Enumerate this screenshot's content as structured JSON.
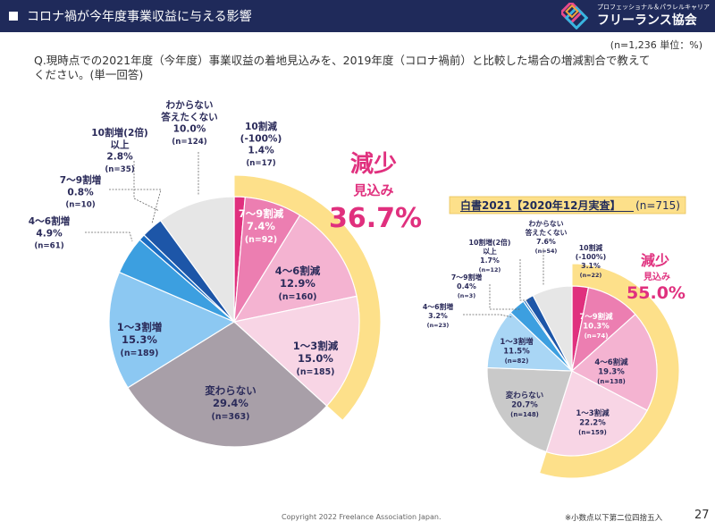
{
  "header": {
    "title": "コロナ禍が今年度事業収益に与える影響",
    "logo_sub": "プロフェッショナル＆パラレルキャリア",
    "logo_main": "フリーランス協会",
    "colors": {
      "bar": "#1f2a5a",
      "logo": [
        "#e94b8a",
        "#f2a33a",
        "#39b5e0",
        "#7b5fc7"
      ]
    }
  },
  "unit_note": "(n=1,236 単位：%)",
  "question": "Q.現時点での2021年度（今年度）事業収益の着地見込みを、2019年度（コロナ禍前）と比較した場合の増減割合で教えてください。(単一回答)",
  "footer": {
    "copyright": "Copyright 2022 Freelance Association Japan.",
    "note": "※小数点以下第二位四捨五入",
    "page": "27"
  },
  "chart_data": [
    {
      "type": "pie",
      "title": "",
      "categories": [
        "10割減(-100%)",
        "7〜9割減",
        "4〜6割減",
        "1〜3割減",
        "変わらない",
        "1〜3割増",
        "4〜6割増",
        "7〜9割増",
        "10割増(2倍)以上",
        "わからない答えたくない"
      ],
      "values": [
        1.4,
        7.4,
        12.9,
        15.0,
        29.4,
        15.3,
        4.9,
        0.8,
        2.8,
        10.0
      ],
      "counts": [
        "(n=17)",
        "(n=92)",
        "(n=160)",
        "(n=185)",
        "(n=363)",
        "(n=189)",
        "(n=61)",
        "(n=10)",
        "(n=35)",
        "(n=124)"
      ],
      "label_lines": [
        [
          "10割減",
          "(-100%)",
          "1.4%",
          "(n=17)"
        ],
        [
          "7〜9割減",
          "7.4%",
          "(n=92)"
        ],
        [
          "4〜6割減",
          "12.9%",
          "(n=160)"
        ],
        [
          "1〜3割減",
          "15.0%",
          "(n=185)"
        ],
        [
          "変わらない",
          "29.4%",
          "(n=363)"
        ],
        [
          "1〜3割増",
          "15.3%",
          "(n=189)"
        ],
        [
          "4〜6割増",
          "4.9%",
          "(n=61)"
        ],
        [
          "7〜9割増",
          "0.8%",
          "(n=10)"
        ],
        [
          "10割増(2倍)",
          "以上",
          "2.8%",
          "(n=35)"
        ],
        [
          "わからない",
          "答えたくない",
          "10.0%",
          "(n=124)"
        ]
      ],
      "colors": [
        "#e0307e",
        "#ec7eb1",
        "#f4b3d1",
        "#f8d5e5",
        "#a89fa8",
        "#8cc8f2",
        "#3c9fe0",
        "#1a6cc2",
        "#1d56a8",
        "#e6e6e6"
      ],
      "decrease_summary": {
        "label1": "減少",
        "label2": "見込み",
        "value": "36.7%"
      },
      "decrease_ring_color": "#fde08a"
    },
    {
      "type": "pie",
      "title": "白書2021【2020年12月実査】",
      "title_n": "(n=715)",
      "categories": [
        "10割減(-100%)",
        "7〜9割減",
        "4〜6割減",
        "1〜3割減",
        "変わらない",
        "1〜3割増",
        "4〜6割増",
        "7〜9割増",
        "10割増(2倍)以上",
        "わからない答えたくない"
      ],
      "values": [
        3.1,
        10.3,
        19.3,
        22.2,
        20.7,
        11.5,
        3.2,
        0.4,
        1.7,
        7.6
      ],
      "counts": [
        "(n=22)",
        "(n=74)",
        "(n=138)",
        "(n=159)",
        "(n=148)",
        "(n=82)",
        "(n=23)",
        "(n=3)",
        "(n=12)",
        "(n=54)"
      ],
      "label_lines": [
        [
          "10割減",
          "(-100%)",
          "3.1%",
          "(n=22)"
        ],
        [
          "7〜9割減",
          "10.3%",
          "(n=74)"
        ],
        [
          "4〜6割減",
          "19.3%",
          "(n=138)"
        ],
        [
          "1〜3割減",
          "22.2%",
          "(n=159)"
        ],
        [
          "変わらない",
          "20.7%",
          "(n=148)"
        ],
        [
          "1〜3割増",
          "11.5%",
          "(n=82)"
        ],
        [
          "4〜6割増",
          "3.2%",
          "(n=23)"
        ],
        [
          "7〜9割増",
          "0.4%",
          "(n=3)"
        ],
        [
          "10割増(2倍)",
          "以上",
          "1.7%",
          "(n=12)"
        ],
        [
          "わからない",
          "答えたくない",
          "7.6%",
          "(n=54)"
        ]
      ],
      "colors": [
        "#e0307e",
        "#ec7eb1",
        "#f4b3d1",
        "#f8d5e5",
        "#c9c9c9",
        "#a9d6f5",
        "#3c9fe0",
        "#1a6cc2",
        "#1d56a8",
        "#e6e6e6"
      ],
      "decrease_summary": {
        "label1": "減少",
        "label2": "見込み",
        "value": "55.0%"
      },
      "decrease_ring_color": "#fde08a"
    }
  ]
}
